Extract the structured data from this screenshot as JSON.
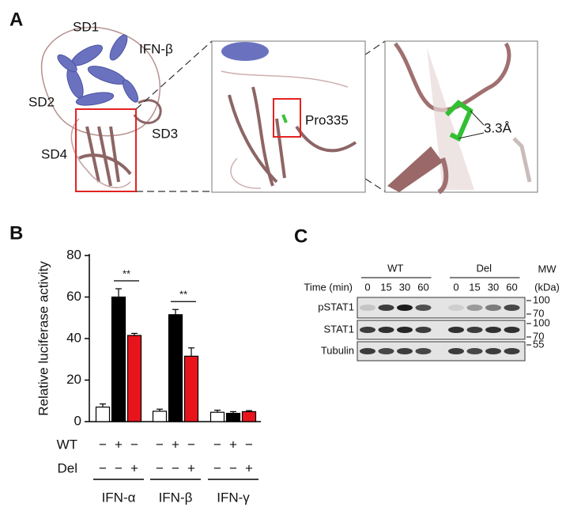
{
  "structure": {
    "label": "A",
    "domains": [
      "SD1",
      "IFN-β",
      "SD2",
      "SD3",
      "SD4"
    ],
    "residue": "Pro335",
    "distance": "3.3Å"
  },
  "chart_data": {
    "type": "bar",
    "label": "B",
    "y_label": "Relative luciferase activity",
    "categories": [
      "IFN-α",
      "IFN-β",
      "IFN-γ"
    ],
    "series": [
      {
        "color": "#ffffff",
        "values": [
          7,
          5,
          4.5
        ],
        "errors": [
          1.5,
          1,
          1
        ]
      },
      {
        "color": "#000000",
        "values": [
          60,
          51.5,
          4
        ],
        "errors": [
          4,
          2.5,
          0.8
        ]
      },
      {
        "color": "#e8141c",
        "values": [
          41.5,
          31.5,
          4.8
        ],
        "errors": [
          1,
          4,
          0.5
        ]
      }
    ],
    "conditions": [
      {
        "name": "WT",
        "signs": [
          "−",
          "+",
          "−"
        ]
      },
      {
        "name": "Del",
        "signs": [
          "−",
          "−",
          "+"
        ]
      }
    ],
    "annotations": [
      "**",
      "**"
    ],
    "ylim": [
      0,
      80
    ],
    "yticks": [
      0,
      20,
      40,
      60,
      80
    ]
  },
  "blot": {
    "label": "C",
    "time_label": "Time (min)",
    "mw_label": "MW",
    "mw_unit": "(kDa)",
    "groups": [
      {
        "name": "WT",
        "times": [
          0,
          15,
          30,
          60
        ]
      },
      {
        "name": "Del",
        "times": [
          0,
          15,
          30,
          60
        ]
      }
    ],
    "rows": [
      {
        "name": "pSTAT1",
        "markers": [
          100,
          70
        ]
      },
      {
        "name": "STAT1",
        "markers": [
          100,
          70
        ]
      },
      {
        "name": "Tubulin",
        "markers": [
          55
        ]
      }
    ]
  }
}
